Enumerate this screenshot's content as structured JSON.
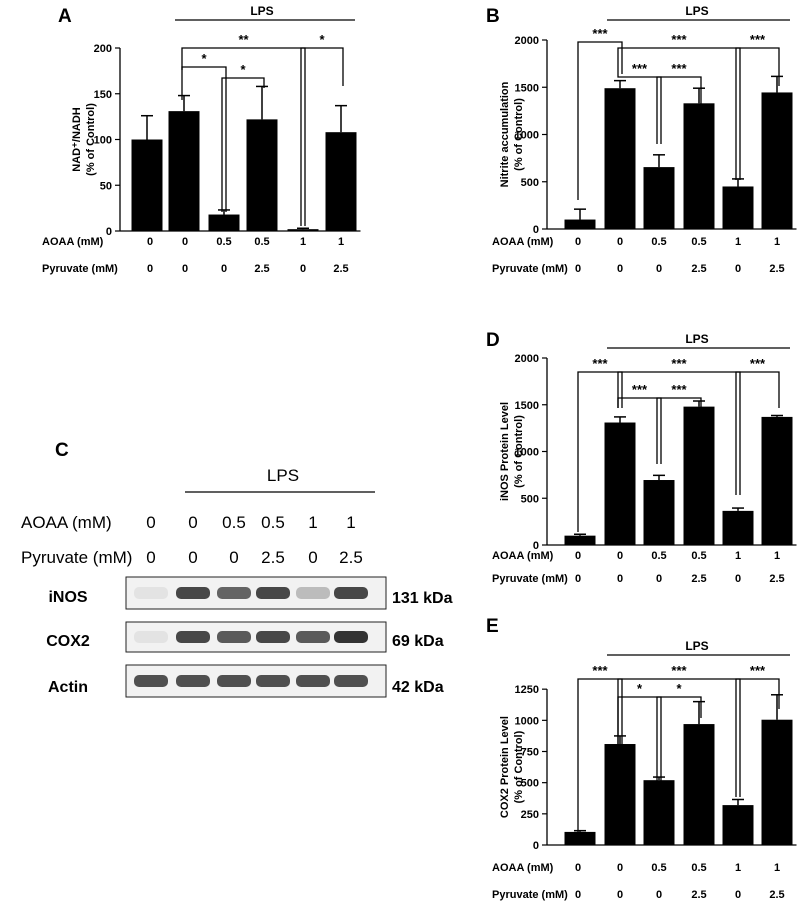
{
  "chart_data": [
    {
      "panel": "A",
      "type": "bar",
      "lps_label": "LPS",
      "ylabel": [
        "NAD⁺/NADH",
        "(% of Control)"
      ],
      "ylim": [
        0,
        200
      ],
      "yticks": [
        "0",
        "50",
        "100",
        "150",
        "200"
      ],
      "values": [
        100,
        131,
        18,
        122,
        2,
        108
      ],
      "errors": [
        26,
        17,
        5,
        36,
        1,
        29
      ],
      "rows": [
        {
          "label": "AOAA (mM)",
          "values": [
            "0",
            "0",
            "0.5",
            "0.5",
            "1",
            "1"
          ]
        },
        {
          "label": "Pyruvate (mM)",
          "values": [
            "0",
            "0",
            "0",
            "2.5",
            "0",
            "2.5"
          ]
        }
      ],
      "significance": [
        "*",
        "*",
        "**",
        "*"
      ]
    },
    {
      "panel": "B",
      "type": "bar",
      "lps_label": "LPS",
      "ylabel": [
        "Nitrite accumulation",
        "(% of Control)"
      ],
      "ylim": [
        0,
        2000
      ],
      "yticks": [
        "0",
        "500",
        "1000",
        "1500",
        "2000"
      ],
      "values": [
        100,
        1490,
        655,
        1330,
        450,
        1445
      ],
      "errors": [
        110,
        80,
        130,
        160,
        80,
        170
      ],
      "rows": [
        {
          "label": "AOAA (mM)",
          "values": [
            "0",
            "0",
            "0.5",
            "0.5",
            "1",
            "1"
          ]
        },
        {
          "label": "Pyruvate (mM)",
          "values": [
            "0",
            "0",
            "0",
            "2.5",
            "0",
            "2.5"
          ]
        }
      ],
      "significance": [
        "***",
        "***",
        "***",
        "***",
        "***"
      ]
    },
    {
      "panel": "D",
      "type": "bar",
      "lps_label": "LPS",
      "ylabel": [
        "iNOS Protein Level",
        "(% of Control)"
      ],
      "ylim": [
        0,
        2000
      ],
      "yticks": [
        "0",
        "500",
        "1000",
        "1500",
        "2000"
      ],
      "values": [
        100,
        1310,
        695,
        1480,
        365,
        1370
      ],
      "errors": [
        15,
        60,
        50,
        60,
        30,
        15
      ],
      "rows": [
        {
          "label": "AOAA (mM)",
          "values": [
            "0",
            "0",
            "0.5",
            "0.5",
            "1",
            "1"
          ]
        },
        {
          "label": "Pyruvate (mM)",
          "values": [
            "0",
            "0",
            "0",
            "2.5",
            "0",
            "2.5"
          ]
        }
      ],
      "significance": [
        "***",
        "***",
        "***",
        "***",
        "***"
      ]
    },
    {
      "panel": "E",
      "type": "bar",
      "lps_label": "LPS",
      "ylabel": [
        "COX2 Protein Level",
        "(% of Control)"
      ],
      "ylim": [
        0,
        1500
      ],
      "yticks": [
        "0",
        "250",
        "500",
        "750",
        "1000",
        "1250"
      ],
      "values": [
        105,
        810,
        520,
        970,
        320,
        1005
      ],
      "errors": [
        10,
        65,
        25,
        180,
        45,
        200
      ],
      "rows": [
        {
          "label": "AOAA (mM)",
          "values": [
            "0",
            "0",
            "0.5",
            "0.5",
            "1",
            "1"
          ]
        },
        {
          "label": "Pyruvate (mM)",
          "values": [
            "0",
            "0",
            "0",
            "2.5",
            "0",
            "2.5"
          ]
        }
      ],
      "significance": [
        "***",
        "*",
        "*",
        "***",
        "***"
      ]
    }
  ],
  "blot": {
    "panel": "C",
    "lps_label": "LPS",
    "rows": [
      {
        "label": "AOAA  (mM)",
        "values": [
          "0",
          "0",
          "0.5",
          "0.5",
          "1",
          "1"
        ]
      },
      {
        "label": "Pyruvate  (mM)",
        "values": [
          "0",
          "0",
          "0",
          "2.5",
          "0",
          "2.5"
        ]
      }
    ],
    "proteins": [
      {
        "name": "iNOS",
        "kda": "131 kDa",
        "intensities": [
          0.05,
          0.85,
          0.7,
          0.85,
          0.25,
          0.85
        ]
      },
      {
        "name": "COX2",
        "kda": "69 kDa",
        "intensities": [
          0.05,
          0.85,
          0.75,
          0.85,
          0.75,
          0.95
        ]
      },
      {
        "name": "Actin",
        "kda": "42 kDa",
        "intensities": [
          0.8,
          0.8,
          0.8,
          0.8,
          0.8,
          0.8
        ]
      }
    ]
  }
}
